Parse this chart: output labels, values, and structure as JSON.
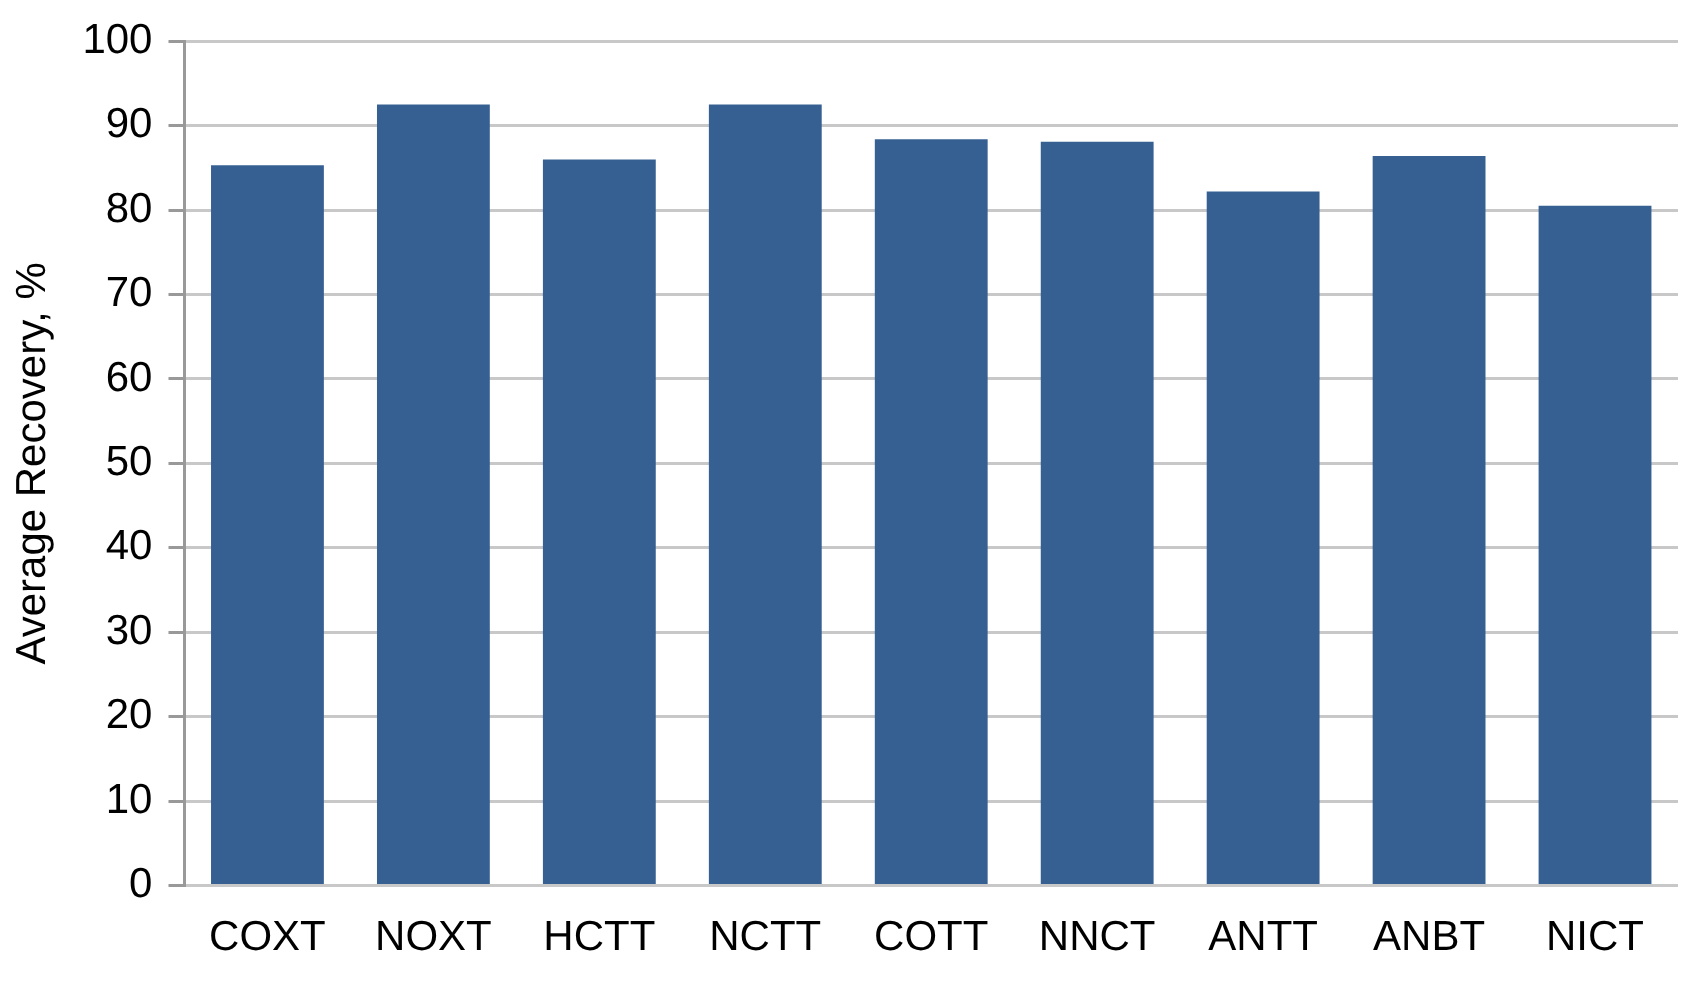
{
  "chart_data": {
    "type": "bar",
    "ylabel": "Average Recovery, %",
    "categories": [
      "COXT",
      "NOXT",
      "HCTT",
      "NCTT",
      "COTT",
      "NNCT",
      "ANTT",
      "ANBT",
      "NICT"
    ],
    "values": [
      85.3,
      92.5,
      86.0,
      92.5,
      88.4,
      88.1,
      82.2,
      86.4,
      80.5
    ],
    "color": "#376092",
    "ylim": [
      0,
      100
    ],
    "yticks": [
      0,
      10,
      20,
      30,
      40,
      50,
      60,
      70,
      80,
      90,
      100
    ],
    "grid": "y"
  }
}
